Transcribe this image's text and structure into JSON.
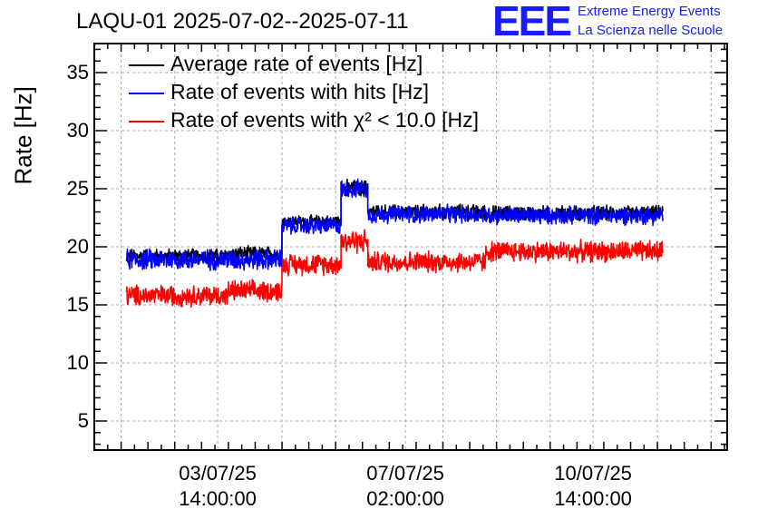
{
  "chart_data": {
    "type": "line",
    "title": "LAQU-01 2025-07-02--2025-07-11",
    "ylabel": "Rate [Hz]",
    "xlabel": "",
    "ylim": [
      2.5,
      37.5
    ],
    "yticks": [
      5,
      10,
      15,
      20,
      25,
      30,
      35
    ],
    "xticks": [
      {
        "line1": "03/07/25",
        "line2": "14:00:00",
        "t": 1.0
      },
      {
        "line1": "07/07/25",
        "line2": "02:00:00",
        "t": 4.5
      },
      {
        "line1": "10/07/25",
        "line2": "14:00:00",
        "t": 8.0
      }
    ],
    "xlim": [
      -1.3,
      10.5
    ],
    "grid": true,
    "legend_position": "top-left",
    "series": [
      {
        "name": "Average rate of events [Hz]",
        "color": "#000000",
        "segments": [
          {
            "t0": -0.7,
            "t1": 1.2,
            "mean": 19.2,
            "noise": 0.5
          },
          {
            "t0": 1.2,
            "t1": 1.2,
            "mean": 19.2,
            "noise": 0.5
          },
          {
            "t0": 1.2,
            "t1": 2.2,
            "mean": 19.4,
            "noise": 0.5
          },
          {
            "t0": 2.2,
            "t1": 3.3,
            "mean": 22.2,
            "noise": 0.4
          },
          {
            "t0": 3.3,
            "t1": 3.8,
            "mean": 25.0,
            "noise": 0.6
          },
          {
            "t0": 3.8,
            "t1": 6.0,
            "mean": 23.0,
            "noise": 0.5
          },
          {
            "t0": 6.0,
            "t1": 9.3,
            "mean": 22.9,
            "noise": 0.5
          }
        ]
      },
      {
        "name": "Rate of events with hits [Hz]",
        "color": "#0000ff",
        "segments": [
          {
            "t0": -0.7,
            "t1": 1.2,
            "mean": 18.9,
            "noise": 0.7
          },
          {
            "t0": 1.2,
            "t1": 2.2,
            "mean": 18.9,
            "noise": 0.7
          },
          {
            "t0": 2.2,
            "t1": 3.3,
            "mean": 21.8,
            "noise": 0.6
          },
          {
            "t0": 3.3,
            "t1": 3.8,
            "mean": 25.0,
            "noise": 0.6
          },
          {
            "t0": 3.8,
            "t1": 6.0,
            "mean": 22.8,
            "noise": 0.6
          },
          {
            "t0": 6.0,
            "t1": 9.3,
            "mean": 22.7,
            "noise": 0.6
          }
        ]
      },
      {
        "name": "Rate of events with χ² < 10.0 [Hz]",
        "color": "#ff0000",
        "segments": [
          {
            "t0": -0.7,
            "t1": 1.2,
            "mean": 15.8,
            "noise": 0.7
          },
          {
            "t0": 1.2,
            "t1": 2.2,
            "mean": 16.2,
            "noise": 0.7
          },
          {
            "t0": 2.2,
            "t1": 3.3,
            "mean": 18.5,
            "noise": 0.7
          },
          {
            "t0": 3.3,
            "t1": 3.8,
            "mean": 20.5,
            "noise": 0.8
          },
          {
            "t0": 3.8,
            "t1": 6.0,
            "mean": 18.7,
            "noise": 0.7
          },
          {
            "t0": 6.0,
            "t1": 9.3,
            "mean": 19.6,
            "noise": 0.7
          }
        ]
      }
    ]
  },
  "logo": {
    "mark": "EEE",
    "line1": "Extreme Energy Events",
    "line2": "La Scienza nelle Scuole"
  }
}
